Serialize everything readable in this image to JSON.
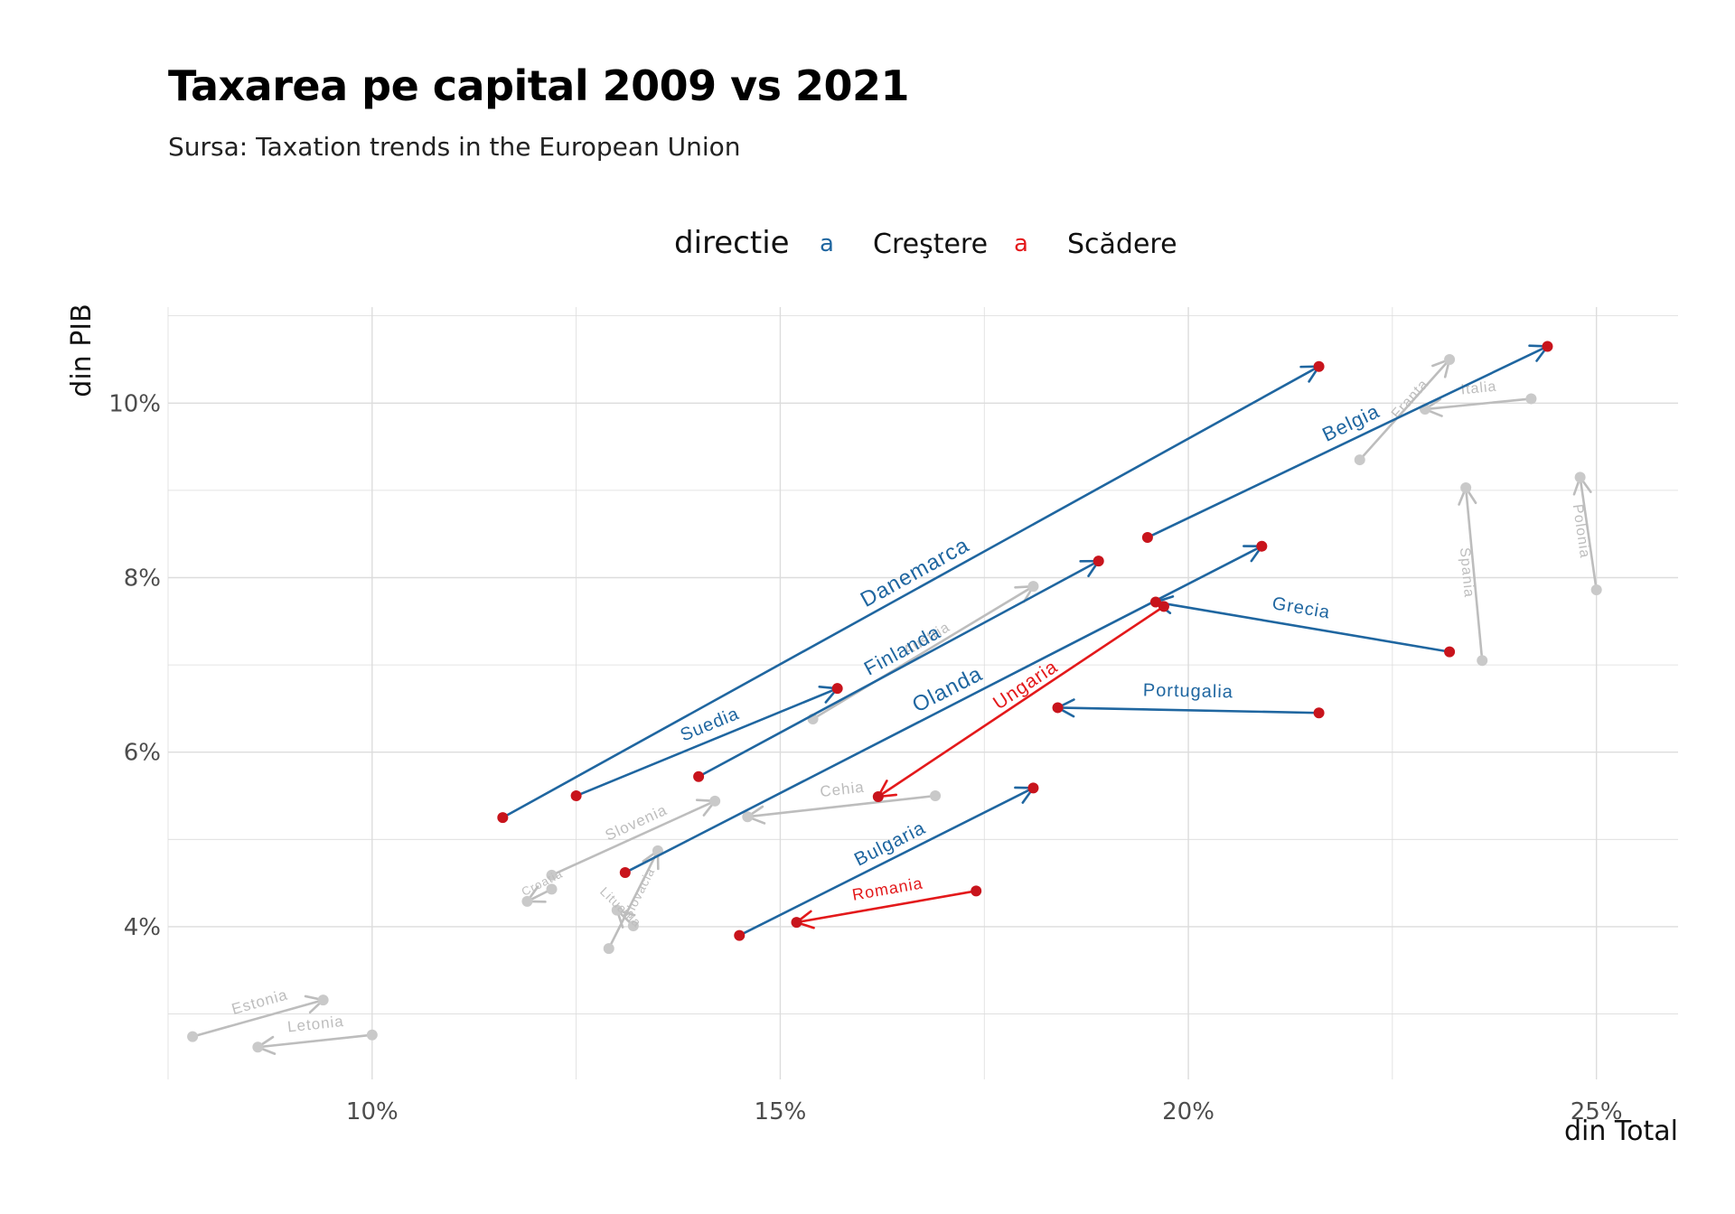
{
  "title": "Taxarea pe capital 2009 vs 2021",
  "subtitle": "Sursa: Taxation trends in the European Union",
  "colors": {
    "crestere": "#1f66a0",
    "scadere": "#e3191b",
    "other": "#bdbdbd",
    "point": "#c8141c",
    "grid": "#dcdcdc"
  },
  "legend": {
    "title": "directie",
    "key_glyph": "a",
    "items": [
      {
        "key": "crestere",
        "label": "Creştere"
      },
      {
        "key": "scadere",
        "label": "Scădere"
      }
    ]
  },
  "chart_data": {
    "type": "scatter",
    "subtype": "arrows 2009 -> 2021",
    "xlabel": "din Total",
    "ylabel": "din PIB",
    "xlim": [
      7.5,
      26.0
    ],
    "ylim": [
      2.25,
      11.1
    ],
    "x_ticks": [
      {
        "value": 10,
        "label": "10%"
      },
      {
        "value": 15,
        "label": "15%"
      },
      {
        "value": 20,
        "label": "20%"
      },
      {
        "value": 25,
        "label": "25%"
      }
    ],
    "y_ticks": [
      {
        "value": 4,
        "label": "4%"
      },
      {
        "value": 6,
        "label": "6%"
      },
      {
        "value": 8,
        "label": "8%"
      },
      {
        "value": 10,
        "label": "10%"
      }
    ],
    "countries": [
      {
        "name": "Danemarca",
        "group": "crestere",
        "from": [
          11.6,
          5.25
        ],
        "to": [
          21.6,
          10.42
        ],
        "size": 24
      },
      {
        "name": "Belgia",
        "group": "crestere",
        "from": [
          19.5,
          8.46
        ],
        "to": [
          24.4,
          10.65
        ],
        "size": 22
      },
      {
        "name": "Finlanda",
        "group": "crestere",
        "from": [
          14.0,
          5.72
        ],
        "to": [
          18.9,
          8.19
        ],
        "size": 22
      },
      {
        "name": "Suedia",
        "group": "crestere",
        "from": [
          12.5,
          5.5
        ],
        "to": [
          15.7,
          6.73
        ],
        "size": 20
      },
      {
        "name": "Olanda",
        "group": "crestere",
        "from": [
          13.1,
          4.62
        ],
        "to": [
          20.9,
          8.36
        ],
        "size": 24
      },
      {
        "name": "Bulgaria",
        "group": "crestere",
        "from": [
          14.5,
          3.9
        ],
        "to": [
          18.1,
          5.59
        ],
        "size": 21
      },
      {
        "name": "Grecia",
        "group": "crestere",
        "from": [
          23.2,
          7.15
        ],
        "to": [
          19.6,
          7.72
        ],
        "size": 20
      },
      {
        "name": "Portugalia",
        "group": "crestere",
        "from": [
          21.6,
          6.45
        ],
        "to": [
          18.4,
          6.51
        ],
        "size": 20
      },
      {
        "name": "Ungaria",
        "group": "scadere",
        "from": [
          19.7,
          7.67
        ],
        "to": [
          16.2,
          5.49
        ],
        "size": 21
      },
      {
        "name": "Romania",
        "group": "scadere",
        "from": [
          17.4,
          4.41
        ],
        "to": [
          15.2,
          4.05
        ],
        "size": 18
      },
      {
        "name": "Franta",
        "group": "other",
        "from": [
          22.1,
          9.35
        ],
        "to": [
          23.2,
          10.5
        ],
        "size": 16
      },
      {
        "name": "Italia",
        "group": "other",
        "from": [
          24.2,
          10.05
        ],
        "to": [
          22.9,
          9.93
        ],
        "size": 16
      },
      {
        "name": "Spania",
        "group": "other",
        "from": [
          23.6,
          7.05
        ],
        "to": [
          23.4,
          9.03
        ],
        "size": 16
      },
      {
        "name": "Polonia",
        "group": "other",
        "from": [
          25.0,
          7.86
        ],
        "to": [
          24.8,
          9.15
        ],
        "size": 16
      },
      {
        "name": "Austria",
        "group": "other",
        "from": [
          15.4,
          6.38
        ],
        "to": [
          18.1,
          7.9
        ],
        "size": 16
      },
      {
        "name": "Cehia",
        "group": "other",
        "from": [
          16.9,
          5.5
        ],
        "to": [
          14.6,
          5.26
        ],
        "size": 17
      },
      {
        "name": "Slovenia",
        "group": "other",
        "from": [
          12.2,
          4.59
        ],
        "to": [
          14.2,
          5.44
        ],
        "size": 17
      },
      {
        "name": "Croatia",
        "group": "other",
        "from": [
          12.2,
          4.43
        ],
        "to": [
          11.9,
          4.29
        ],
        "size": 13
      },
      {
        "name": "Slovacia",
        "group": "other",
        "from": [
          12.9,
          3.75
        ],
        "to": [
          13.5,
          4.87
        ],
        "size": 14
      },
      {
        "name": "Lituania",
        "group": "other",
        "from": [
          13.2,
          4.01
        ],
        "to": [
          13.0,
          4.19
        ],
        "size": 14
      },
      {
        "name": "Estonia",
        "group": "other",
        "from": [
          7.8,
          2.74
        ],
        "to": [
          9.4,
          3.16
        ],
        "size": 17
      },
      {
        "name": "Letonia",
        "group": "other",
        "from": [
          10.0,
          2.76
        ],
        "to": [
          8.6,
          2.62
        ],
        "size": 17
      }
    ]
  }
}
